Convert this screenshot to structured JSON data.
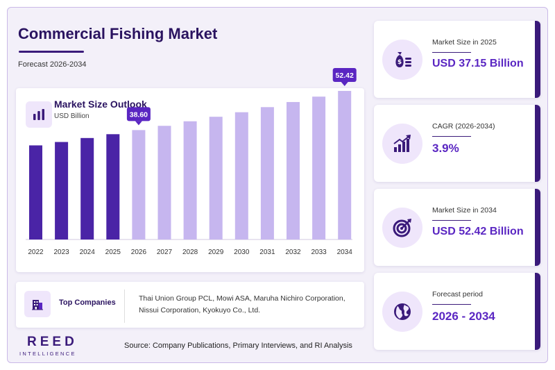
{
  "header": {
    "title": "Commercial Fishing Market",
    "subtitle": "Forecast 2026-2034"
  },
  "chart_data": {
    "type": "bar",
    "title": "Market Size Outlook",
    "ylabel": "USD Billion",
    "categories": [
      "2022",
      "2023",
      "2024",
      "2025",
      "2026",
      "2027",
      "2028",
      "2029",
      "2030",
      "2031",
      "2032",
      "2033",
      "2034"
    ],
    "values": [
      33.2,
      34.4,
      35.8,
      37.15,
      38.6,
      40.1,
      41.7,
      43.3,
      44.9,
      46.7,
      48.5,
      50.4,
      52.42
    ],
    "ylim": [
      0,
      60
    ],
    "historical_color": "#4a24a6",
    "forecast_color": "#c6b6ef",
    "callouts": [
      {
        "category": "2026",
        "label": "38.60"
      },
      {
        "category": "2034",
        "label": "52.42"
      }
    ],
    "grid": false,
    "legend": "none"
  },
  "companies": {
    "label": "Top Companies",
    "list": "Thai Union Group PCL, Mowi ASA, Maruha Nichiro Corporation, Nissui Corporation, Kyokuyo Co., Ltd."
  },
  "logo": {
    "name": "REED",
    "tagline": "INTELLIGENCE"
  },
  "source": "Source: Company Publications, Primary Interviews, and RI Analysis",
  "stats": [
    {
      "label": "Market Size in 2025",
      "value": "USD 37.15 Billion",
      "icon": "money-bag-icon"
    },
    {
      "label": "CAGR (2026-2034)",
      "value": "3.9%",
      "icon": "growth-chart-icon"
    },
    {
      "label": "Market Size in 2034",
      "value": "USD 52.42 Billion",
      "icon": "target-icon"
    },
    {
      "label": "Forecast period",
      "value": "2026 - 2034",
      "icon": "globe-icon"
    }
  ],
  "colors": {
    "accent": "#5a26c2",
    "dark": "#2a1360",
    "icon_bg": "#efe6fb"
  }
}
